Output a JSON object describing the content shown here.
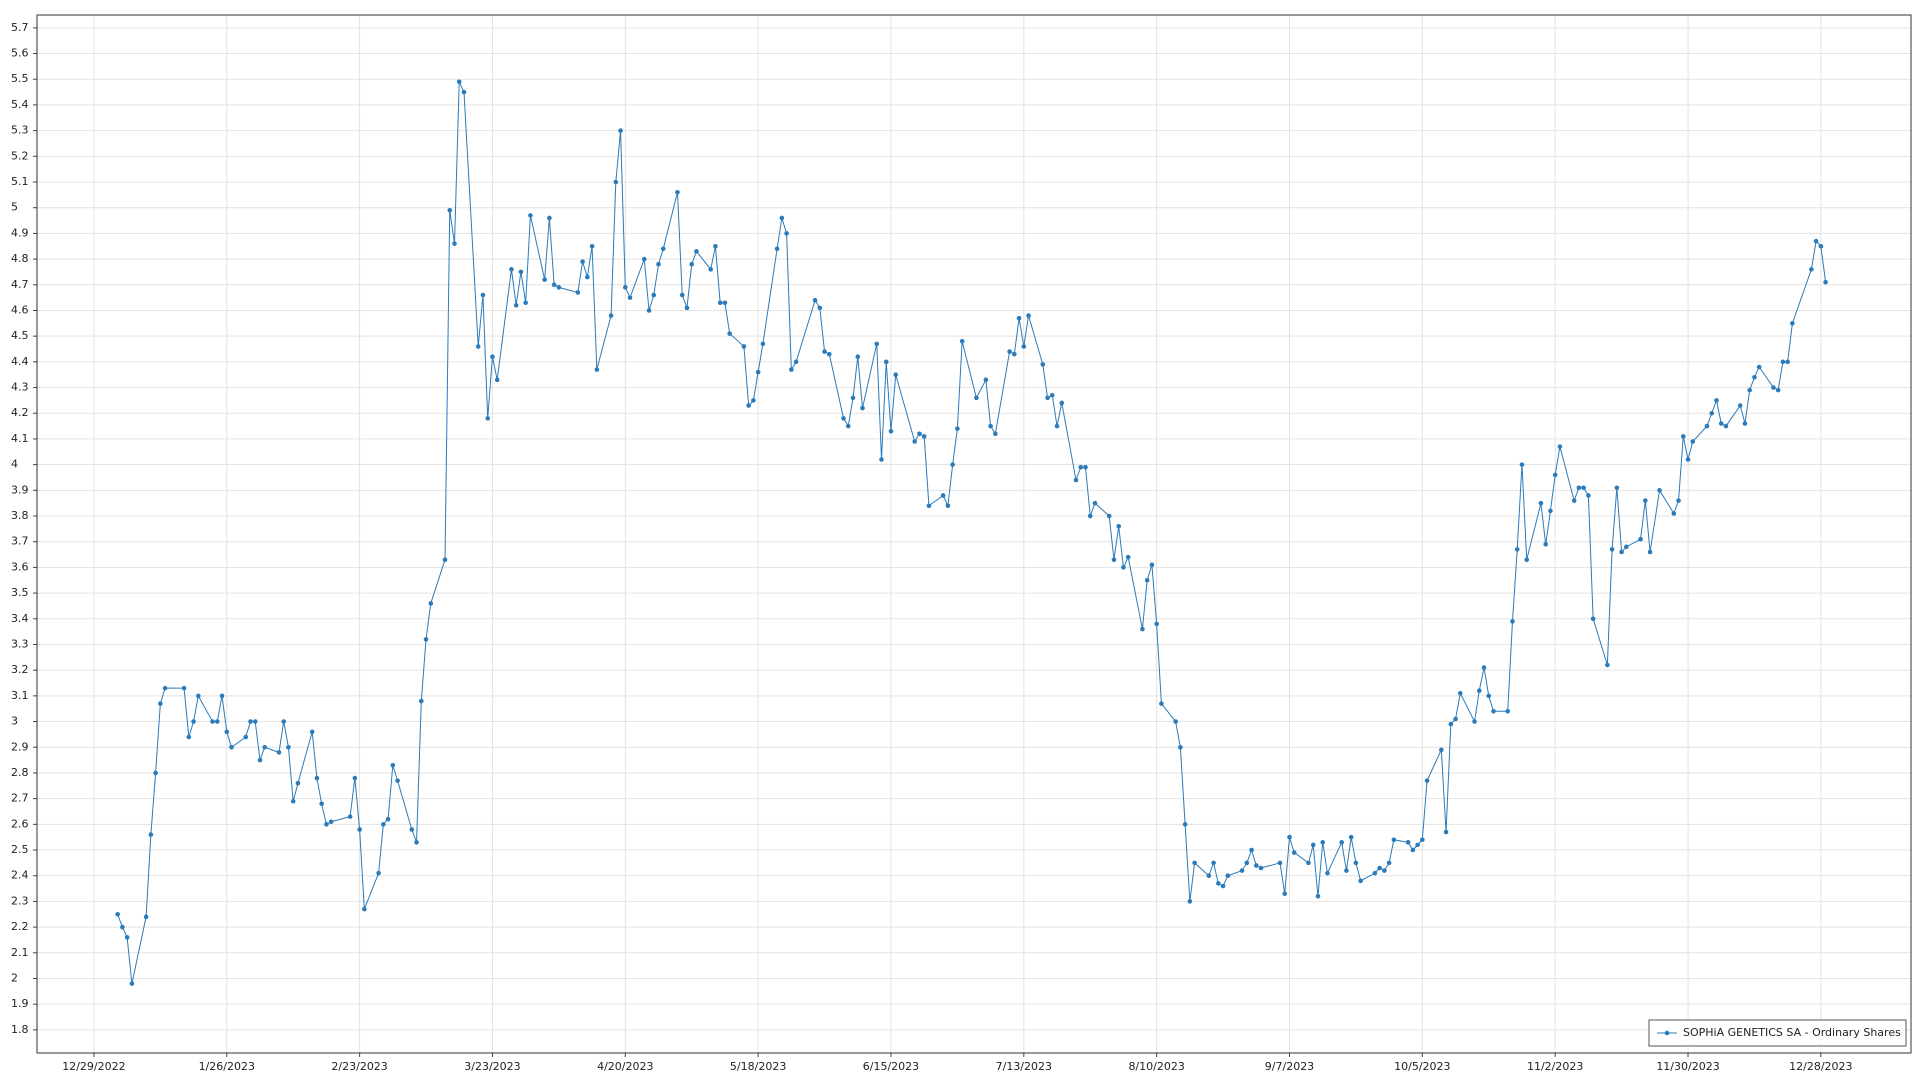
{
  "chart_data": {
    "type": "line",
    "x": [
      "2023-01-03",
      "2023-01-04",
      "2023-01-05",
      "2023-01-06",
      "2023-01-09",
      "2023-01-10",
      "2023-01-11",
      "2023-01-12",
      "2023-01-13",
      "2023-01-17",
      "2023-01-18",
      "2023-01-19",
      "2023-01-20",
      "2023-01-23",
      "2023-01-24",
      "2023-01-25",
      "2023-01-26",
      "2023-01-27",
      "2023-01-30",
      "2023-01-31",
      "2023-02-01",
      "2023-02-02",
      "2023-02-03",
      "2023-02-06",
      "2023-02-07",
      "2023-02-08",
      "2023-02-09",
      "2023-02-10",
      "2023-02-13",
      "2023-02-14",
      "2023-02-15",
      "2023-02-16",
      "2023-02-17",
      "2023-02-21",
      "2023-02-22",
      "2023-02-23",
      "2023-02-24",
      "2023-02-27",
      "2023-02-28",
      "2023-03-01",
      "2023-03-02",
      "2023-03-03",
      "2023-03-06",
      "2023-03-07",
      "2023-03-08",
      "2023-03-09",
      "2023-03-10",
      "2023-03-13",
      "2023-03-14",
      "2023-03-15",
      "2023-03-16",
      "2023-03-17",
      "2023-03-20",
      "2023-03-21",
      "2023-03-22",
      "2023-03-23",
      "2023-03-24",
      "2023-03-27",
      "2023-03-28",
      "2023-03-29",
      "2023-03-30",
      "2023-03-31",
      "2023-04-03",
      "2023-04-04",
      "2023-04-05",
      "2023-04-06",
      "2023-04-10",
      "2023-04-11",
      "2023-04-12",
      "2023-04-13",
      "2023-04-14",
      "2023-04-17",
      "2023-04-18",
      "2023-04-19",
      "2023-04-20",
      "2023-04-21",
      "2023-04-24",
      "2023-04-25",
      "2023-04-26",
      "2023-04-27",
      "2023-04-28",
      "2023-05-01",
      "2023-05-02",
      "2023-05-03",
      "2023-05-04",
      "2023-05-05",
      "2023-05-08",
      "2023-05-09",
      "2023-05-10",
      "2023-05-11",
      "2023-05-12",
      "2023-05-15",
      "2023-05-16",
      "2023-05-17",
      "2023-05-18",
      "2023-05-19",
      "2023-05-22",
      "2023-05-23",
      "2023-05-24",
      "2023-05-25",
      "2023-05-26",
      "2023-05-30",
      "2023-05-31",
      "2023-06-01",
      "2023-06-02",
      "2023-06-05",
      "2023-06-06",
      "2023-06-07",
      "2023-06-08",
      "2023-06-09",
      "2023-06-12",
      "2023-06-13",
      "2023-06-14",
      "2023-06-15",
      "2023-06-16",
      "2023-06-20",
      "2023-06-21",
      "2023-06-22",
      "2023-06-23",
      "2023-06-26",
      "2023-06-27",
      "2023-06-28",
      "2023-06-29",
      "2023-06-30",
      "2023-07-03",
      "2023-07-05",
      "2023-07-06",
      "2023-07-07",
      "2023-07-10",
      "2023-07-11",
      "2023-07-12",
      "2023-07-13",
      "2023-07-14",
      "2023-07-17",
      "2023-07-18",
      "2023-07-19",
      "2023-07-20",
      "2023-07-21",
      "2023-07-24",
      "2023-07-25",
      "2023-07-26",
      "2023-07-27",
      "2023-07-28",
      "2023-07-31",
      "2023-08-01",
      "2023-08-02",
      "2023-08-03",
      "2023-08-04",
      "2023-08-07",
      "2023-08-08",
      "2023-08-09",
      "2023-08-10",
      "2023-08-11",
      "2023-08-14",
      "2023-08-15",
      "2023-08-16",
      "2023-08-17",
      "2023-08-18",
      "2023-08-21",
      "2023-08-22",
      "2023-08-23",
      "2023-08-24",
      "2023-08-25",
      "2023-08-28",
      "2023-08-29",
      "2023-08-30",
      "2023-08-31",
      "2023-09-01",
      "2023-09-05",
      "2023-09-06",
      "2023-09-07",
      "2023-09-08",
      "2023-09-11",
      "2023-09-12",
      "2023-09-13",
      "2023-09-14",
      "2023-09-15",
      "2023-09-18",
      "2023-09-19",
      "2023-09-20",
      "2023-09-21",
      "2023-09-22",
      "2023-09-25",
      "2023-09-26",
      "2023-09-27",
      "2023-09-28",
      "2023-09-29",
      "2023-10-02",
      "2023-10-03",
      "2023-10-04",
      "2023-10-05",
      "2023-10-06",
      "2023-10-09",
      "2023-10-10",
      "2023-10-11",
      "2023-10-12",
      "2023-10-13",
      "2023-10-16",
      "2023-10-17",
      "2023-10-18",
      "2023-10-19",
      "2023-10-20",
      "2023-10-23",
      "2023-10-24",
      "2023-10-25",
      "2023-10-26",
      "2023-10-27",
      "2023-10-30",
      "2023-10-31",
      "2023-11-01",
      "2023-11-02",
      "2023-11-03",
      "2023-11-06",
      "2023-11-07",
      "2023-11-08",
      "2023-11-09",
      "2023-11-10",
      "2023-11-13",
      "2023-11-14",
      "2023-11-15",
      "2023-11-16",
      "2023-11-17",
      "2023-11-20",
      "2023-11-21",
      "2023-11-22",
      "2023-11-24",
      "2023-11-27",
      "2023-11-28",
      "2023-11-29",
      "2023-11-30",
      "2023-12-01",
      "2023-12-04",
      "2023-12-05",
      "2023-12-06",
      "2023-12-07",
      "2023-12-08",
      "2023-12-11",
      "2023-12-12",
      "2023-12-13",
      "2023-12-14",
      "2023-12-15",
      "2023-12-18",
      "2023-12-19",
      "2023-12-20",
      "2023-12-21",
      "2023-12-22",
      "2023-12-26",
      "2023-12-27",
      "2023-12-28",
      "2023-12-29"
    ],
    "series": [
      {
        "name": "SOPHiA GENETICS SA - Ordinary Shares",
        "color": "#2b7bba",
        "values": [
          2.25,
          2.2,
          2.16,
          1.98,
          2.24,
          2.56,
          2.8,
          3.07,
          3.13,
          3.13,
          2.94,
          3.0,
          3.1,
          3.0,
          3.0,
          3.1,
          2.96,
          2.9,
          2.94,
          3.0,
          3.0,
          2.85,
          2.9,
          2.88,
          3.0,
          2.9,
          2.69,
          2.76,
          2.96,
          2.78,
          2.68,
          2.6,
          2.61,
          2.63,
          2.78,
          2.58,
          2.27,
          2.41,
          2.6,
          2.62,
          2.83,
          2.77,
          2.58,
          2.53,
          3.08,
          3.32,
          3.46,
          3.63,
          4.99,
          4.86,
          5.49,
          5.45,
          4.46,
          4.66,
          4.18,
          4.42,
          4.33,
          4.76,
          4.62,
          4.75,
          4.63,
          4.97,
          4.72,
          4.96,
          4.7,
          4.69,
          4.67,
          4.79,
          4.73,
          4.85,
          4.37,
          4.58,
          5.1,
          5.3,
          4.69,
          4.65,
          4.8,
          4.6,
          4.66,
          4.78,
          4.84,
          5.06,
          4.66,
          4.61,
          4.78,
          4.83,
          4.76,
          4.85,
          4.63,
          4.63,
          4.51,
          4.46,
          4.23,
          4.25,
          4.36,
          4.47,
          4.84,
          4.96,
          4.9,
          4.37,
          4.4,
          4.64,
          4.61,
          4.44,
          4.43,
          4.18,
          4.15,
          4.26,
          4.42,
          4.22,
          4.47,
          4.02,
          4.4,
          4.13,
          4.35,
          4.09,
          4.12,
          4.11,
          3.84,
          3.88,
          3.84,
          4.0,
          4.14,
          4.48,
          4.26,
          4.33,
          4.15,
          4.12,
          4.44,
          4.43,
          4.57,
          4.46,
          4.58,
          4.39,
          4.26,
          4.27,
          4.15,
          4.24,
          3.94,
          3.99,
          3.99,
          3.8,
          3.85,
          3.8,
          3.63,
          3.76,
          3.6,
          3.64,
          3.36,
          3.55,
          3.61,
          3.38,
          3.07,
          3.0,
          2.9,
          2.6,
          2.3,
          2.45,
          2.4,
          2.45,
          2.37,
          2.36,
          2.4,
          2.42,
          2.45,
          2.5,
          2.44,
          2.43,
          2.45,
          2.33,
          2.55,
          2.49,
          2.45,
          2.52,
          2.32,
          2.53,
          2.41,
          2.53,
          2.42,
          2.55,
          2.45,
          2.38,
          2.41,
          2.43,
          2.42,
          2.45,
          2.54,
          2.53,
          2.5,
          2.52,
          2.54,
          2.77,
          2.89,
          2.57,
          2.99,
          3.01,
          3.11,
          3.0,
          3.12,
          3.21,
          3.1,
          3.04,
          3.04,
          3.39,
          3.67,
          4.0,
          3.63,
          3.85,
          3.69,
          3.82,
          3.96,
          4.07,
          3.86,
          3.91,
          3.91,
          3.88,
          3.4,
          3.22,
          3.67,
          3.91,
          3.66,
          3.68,
          3.71,
          3.86,
          3.66,
          3.9,
          3.81,
          3.86,
          4.11,
          4.02,
          4.09,
          4.15,
          4.2,
          4.25,
          4.16,
          4.15,
          4.23,
          4.16,
          4.29,
          4.34,
          4.38,
          4.3,
          4.29,
          4.4,
          4.4,
          4.55,
          4.76,
          4.87,
          4.85,
          4.71
        ]
      }
    ],
    "xlim": [
      "2022-12-17",
      "2024-01-16"
    ],
    "xticks": [
      {
        "value": "2022-12-29",
        "label": "12/29/2022"
      },
      {
        "value": "2023-01-26",
        "label": "1/26/2023"
      },
      {
        "value": "2023-02-23",
        "label": "2/23/2023"
      },
      {
        "value": "2023-03-23",
        "label": "3/23/2023"
      },
      {
        "value": "2023-04-20",
        "label": "4/20/2023"
      },
      {
        "value": "2023-05-18",
        "label": "5/18/2023"
      },
      {
        "value": "2023-06-15",
        "label": "6/15/2023"
      },
      {
        "value": "2023-07-13",
        "label": "7/13/2023"
      },
      {
        "value": "2023-08-10",
        "label": "8/10/2023"
      },
      {
        "value": "2023-09-07",
        "label": "9/7/2023"
      },
      {
        "value": "2023-10-05",
        "label": "10/5/2023"
      },
      {
        "value": "2023-11-02",
        "label": "11/2/2023"
      },
      {
        "value": "2023-11-30",
        "label": "11/30/2023"
      },
      {
        "value": "2023-12-28",
        "label": "12/28/2023"
      }
    ],
    "ylim": [
      1.71,
      5.75
    ],
    "yticks": [
      1.8,
      1.9,
      2,
      2.1,
      2.2,
      2.3,
      2.4,
      2.5,
      2.6,
      2.7,
      2.8,
      2.9,
      3,
      3.1,
      3.2,
      3.3,
      3.4,
      3.5,
      3.6,
      3.7,
      3.8,
      3.9,
      4,
      4.1,
      4.2,
      4.3,
      4.4,
      4.5,
      4.6,
      4.7,
      4.8,
      4.9,
      5,
      5.1,
      5.2,
      5.3,
      5.4,
      5.5,
      5.6,
      5.7
    ],
    "grid": true,
    "legend": "lower right"
  }
}
